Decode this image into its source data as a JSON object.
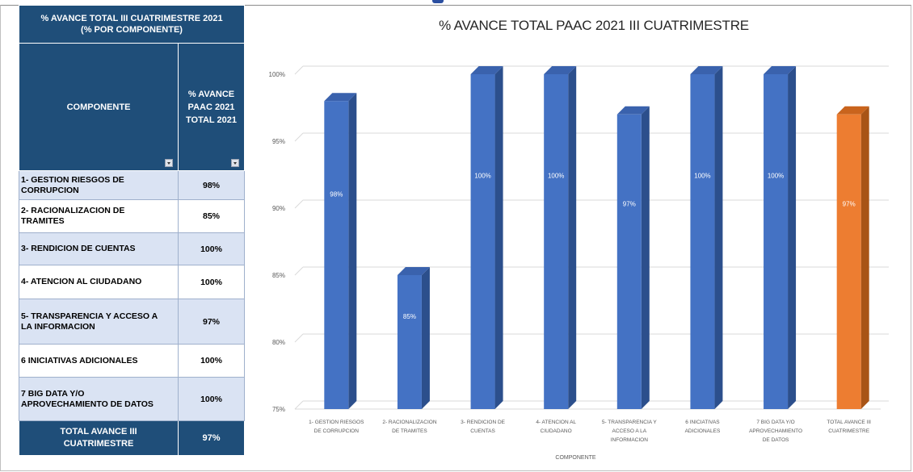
{
  "table": {
    "title_line1": "% AVANCE TOTAL  III CUATRIMESTRE 2021",
    "title_line2": "(% POR COMPONENTE)",
    "col1_header": "COMPONENTE",
    "col2_header_line1": "% AVANCE",
    "col2_header_line2": "PAAC 2021",
    "col2_header_line3": "TOTAL  2021",
    "rows": [
      {
        "name_line1": "1- GESTION RIESGOS DE",
        "name_line2": "CORRUPCION",
        "value": "98%"
      },
      {
        "name_line1": "2- RACIONALIZACION DE",
        "name_line2": "TRAMITES",
        "value": "85%"
      },
      {
        "name_line1": "3- RENDICION DE CUENTAS",
        "name_line2": "",
        "value": "100%"
      },
      {
        "name_line1": "4- ATENCION AL CIUDADANO",
        "name_line2": "",
        "value": "100%"
      },
      {
        "name_line1": "5- TRANSPARENCIA Y ACCESO A",
        "name_line2": "LA INFORMACION",
        "value": "97%"
      },
      {
        "name_line1": "6 INICIATIVAS ADICIONALES",
        "name_line2": "",
        "value": "100%"
      },
      {
        "name_line1": "7 BIG DATA Y/O",
        "name_line2": "APROVECHAMIENTO DE DATOS",
        "value": "100%"
      }
    ],
    "total_line1": "TOTAL AVANCE III",
    "total_line2": "CUATRIMESTRE",
    "total_value": "97%"
  },
  "chart_data": {
    "type": "bar",
    "title": "% AVANCE TOTAL PAAC 2021 III CUATRIMESTRE",
    "xlabel": "COMPONENTE",
    "ylabel": "",
    "ylim": [
      75,
      100
    ],
    "yticks": [
      "75%",
      "80%",
      "85%",
      "90%",
      "95%",
      "100%"
    ],
    "grid": true,
    "categories": [
      [
        "1- GESTION RIESGOS",
        "DE CORRUPCION"
      ],
      [
        "2- RACIONALIZACION",
        "DE TRAMITES"
      ],
      [
        "3- RENDICION DE",
        "CUENTAS"
      ],
      [
        "4- ATENCION AL",
        "CIUDADANO"
      ],
      [
        "5- TRANSPARENCIA Y",
        "ACCESO A LA",
        "INFORMACION"
      ],
      [
        "6 INICIATIVAS",
        "ADICIONALES"
      ],
      [
        "7 BIG DATA Y/O",
        "APROVECHAMIENTO",
        "DE DATOS"
      ],
      [
        "TOTAL AVANCE III",
        "CUATRIMESTRE"
      ]
    ],
    "values": [
      98,
      85,
      100,
      100,
      97,
      100,
      100,
      97
    ],
    "data_labels": [
      "98%",
      "85%",
      "100%",
      "100%",
      "97%",
      "100%",
      "100%",
      "97%"
    ],
    "colors": {
      "component": "#4472c4",
      "total": "#ed7d31",
      "gridline": "#d9d9d9",
      "header": "#1f4e79"
    }
  }
}
